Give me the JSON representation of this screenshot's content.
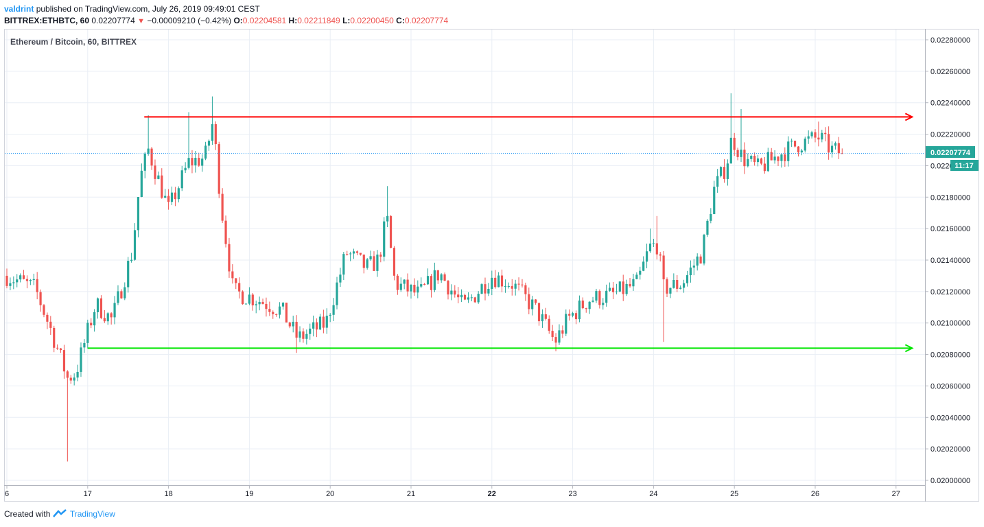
{
  "header": {
    "author": "valdrint",
    "published_text": "published on TradingView.com, July 26, 2019 09:49:01 CEST",
    "symbol": "BITTREX:ETHBTC, 60",
    "last": "0.02207774",
    "change_arrow": "▼",
    "change": "−0.00009210 (−0.42%)",
    "o_label": "O:",
    "o_value": "0.02204581",
    "h_label": "H:",
    "h_value": "0.02211849",
    "l_label": "L:",
    "l_value": "0.02200450",
    "c_label": "C:",
    "c_value": "0.02207774"
  },
  "chart": {
    "legend_title": "Ethereum / Bitcoin, 60, BITTREX",
    "price_label": "0.02207774",
    "countdown": "11:17",
    "colors": {
      "up": "#26a69a",
      "down": "#ef5350",
      "resistance": "#ff0000",
      "support": "#00e600",
      "grid": "#e9eef5",
      "price_line": "#2196f3"
    }
  },
  "footer": {
    "created_with": "Created with",
    "brand": "TradingView"
  },
  "chart_data": {
    "type": "candlestick",
    "title": "Ethereum / Bitcoin, 60, BITTREX",
    "xlabel": "",
    "ylabel": "",
    "ylim": [
      0.02,
      0.0228
    ],
    "x_ticks": [
      "6",
      "17",
      "18",
      "19",
      "20",
      "21",
      "22",
      "23",
      "24",
      "25",
      "26",
      "27"
    ],
    "y_ticks": [
      "0.02000000",
      "0.02020000",
      "0.02040000",
      "0.02060000",
      "0.02080000",
      "0.02100000",
      "0.02120000",
      "0.02140000",
      "0.02160000",
      "0.02180000",
      "0.02200000",
      "0.02220000",
      "0.02240000",
      "0.02260000",
      "0.02280000"
    ],
    "last_price": 0.02207774,
    "annotations": [
      {
        "type": "horizontal-arrow",
        "color": "red",
        "price": 0.02231,
        "from_day": 17.7,
        "to_day": 27.2
      },
      {
        "type": "horizontal-arrow",
        "color": "green",
        "price": 0.02084,
        "from_day": 17.0,
        "to_day": 27.2
      }
    ],
    "anchors": [
      {
        "day": 16.0,
        "close": 0.0213
      },
      {
        "day": 16.35,
        "close": 0.02122
      },
      {
        "day": 16.55,
        "close": 0.02095
      },
      {
        "day": 16.75,
        "close": 0.02065,
        "low": 0.02012
      },
      {
        "day": 16.85,
        "close": 0.02068
      },
      {
        "day": 17.1,
        "close": 0.02112
      },
      {
        "day": 17.3,
        "close": 0.02102
      },
      {
        "day": 17.55,
        "close": 0.02145
      },
      {
        "day": 17.65,
        "close": 0.02192
      },
      {
        "day": 17.75,
        "close": 0.0221,
        "high": 0.02232
      },
      {
        "day": 18.0,
        "close": 0.02172
      },
      {
        "day": 18.25,
        "close": 0.02202,
        "high": 0.02234
      },
      {
        "day": 18.45,
        "close": 0.02205
      },
      {
        "day": 18.55,
        "close": 0.02228,
        "high": 0.02244
      },
      {
        "day": 18.65,
        "close": 0.02175
      },
      {
        "day": 18.8,
        "close": 0.0212
      },
      {
        "day": 19.1,
        "close": 0.02115
      },
      {
        "day": 19.4,
        "close": 0.02108
      },
      {
        "day": 19.6,
        "close": 0.0209,
        "low": 0.02081
      },
      {
        "day": 19.95,
        "close": 0.021
      },
      {
        "day": 20.2,
        "close": 0.02145
      },
      {
        "day": 20.45,
        "close": 0.02135
      },
      {
        "day": 20.6,
        "close": 0.0214
      },
      {
        "day": 20.7,
        "close": 0.02168,
        "high": 0.02187
      },
      {
        "day": 20.8,
        "close": 0.02125
      },
      {
        "day": 21.1,
        "close": 0.02118
      },
      {
        "day": 21.35,
        "close": 0.02132
      },
      {
        "day": 21.65,
        "close": 0.0211
      },
      {
        "day": 22.0,
        "close": 0.0213
      },
      {
        "day": 22.25,
        "close": 0.02125
      },
      {
        "day": 22.55,
        "close": 0.02108
      },
      {
        "day": 22.78,
        "close": 0.02088,
        "low": 0.02082
      },
      {
        "day": 22.95,
        "close": 0.02103
      },
      {
        "day": 23.2,
        "close": 0.02115
      },
      {
        "day": 23.5,
        "close": 0.02118
      },
      {
        "day": 23.8,
        "close": 0.02125
      },
      {
        "day": 23.95,
        "close": 0.02148,
        "high": 0.0216
      },
      {
        "day": 24.05,
        "close": 0.0215,
        "high": 0.02168
      },
      {
        "day": 24.12,
        "close": 0.02122,
        "low": 0.02088
      },
      {
        "day": 24.35,
        "close": 0.02125
      },
      {
        "day": 24.6,
        "close": 0.02145
      },
      {
        "day": 24.75,
        "close": 0.02185
      },
      {
        "day": 24.9,
        "close": 0.022
      },
      {
        "day": 24.97,
        "close": 0.02218,
        "high": 0.02246
      },
      {
        "day": 25.1,
        "close": 0.02205,
        "high": 0.02236
      },
      {
        "day": 25.3,
        "close": 0.02198
      },
      {
        "day": 25.55,
        "close": 0.02207
      },
      {
        "day": 25.8,
        "close": 0.02214
      },
      {
        "day": 26.05,
        "close": 0.02218,
        "high": 0.02228
      },
      {
        "day": 26.2,
        "close": 0.0221
      },
      {
        "day": 26.35,
        "close": 0.02207774
      }
    ]
  }
}
